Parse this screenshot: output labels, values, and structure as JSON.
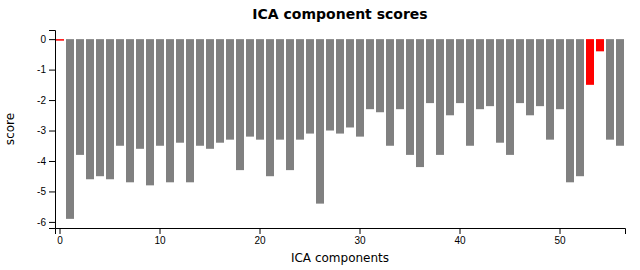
{
  "chart_data": {
    "type": "bar",
    "title": "ICA component scores",
    "x_label": "ICA components",
    "y_label": "score",
    "categories": [
      "0",
      null,
      null,
      null,
      null,
      null,
      null,
      null,
      null,
      null,
      "10",
      null,
      null,
      null,
      null,
      null,
      null,
      null,
      null,
      null,
      "20",
      null,
      null,
      null,
      null,
      null,
      null,
      null,
      null,
      null,
      "30",
      null,
      null,
      null,
      null,
      null,
      null,
      null,
      null,
      null,
      "40",
      null,
      null,
      null,
      null,
      null,
      null,
      null,
      null,
      null,
      "50",
      null,
      null,
      null,
      null,
      null,
      null
    ],
    "values": [
      -0.05,
      -5.9,
      -3.8,
      -4.6,
      -4.5,
      -4.6,
      -3.5,
      -4.7,
      -3.6,
      -4.8,
      -3.5,
      -4.7,
      -3.4,
      -4.7,
      -3.5,
      -3.6,
      -3.4,
      -3.3,
      -4.3,
      -3.2,
      -3.3,
      -4.5,
      -3.3,
      -4.3,
      -3.3,
      -3.1,
      -5.4,
      -3.0,
      -3.1,
      -2.9,
      -3.2,
      -2.3,
      -2.4,
      -3.5,
      -2.3,
      -3.8,
      -4.2,
      -2.1,
      -3.8,
      -2.5,
      -2.1,
      -3.5,
      -2.3,
      -2.2,
      -3.4,
      -3.8,
      -2.1,
      -2.5,
      -2.2,
      -3.3,
      -2.3,
      -4.7,
      -4.5,
      -1.5,
      -0.4,
      -3.3,
      -3.5
    ],
    "colors": [
      "#ff0000",
      "#808080",
      "#808080",
      "#808080",
      "#808080",
      "#808080",
      "#808080",
      "#808080",
      "#808080",
      "#808080",
      "#808080",
      "#808080",
      "#808080",
      "#808080",
      "#808080",
      "#808080",
      "#808080",
      "#808080",
      "#808080",
      "#808080",
      "#808080",
      "#808080",
      "#808080",
      "#808080",
      "#808080",
      "#808080",
      "#808080",
      "#808080",
      "#808080",
      "#808080",
      "#808080",
      "#808080",
      "#808080",
      "#808080",
      "#808080",
      "#808080",
      "#808080",
      "#808080",
      "#808080",
      "#808080",
      "#808080",
      "#808080",
      "#808080",
      "#808080",
      "#808080",
      "#808080",
      "#808080",
      "#808080",
      "#808080",
      "#808080",
      "#808080",
      "#808080",
      "#808080",
      "#ff0000",
      "#ff0000",
      "#808080",
      "#808080"
    ],
    "ylim": [
      -6.2,
      0.3
    ],
    "yticks": [
      -6,
      -5,
      -4,
      -3,
      -2,
      -1,
      0
    ],
    "grid": false
  }
}
